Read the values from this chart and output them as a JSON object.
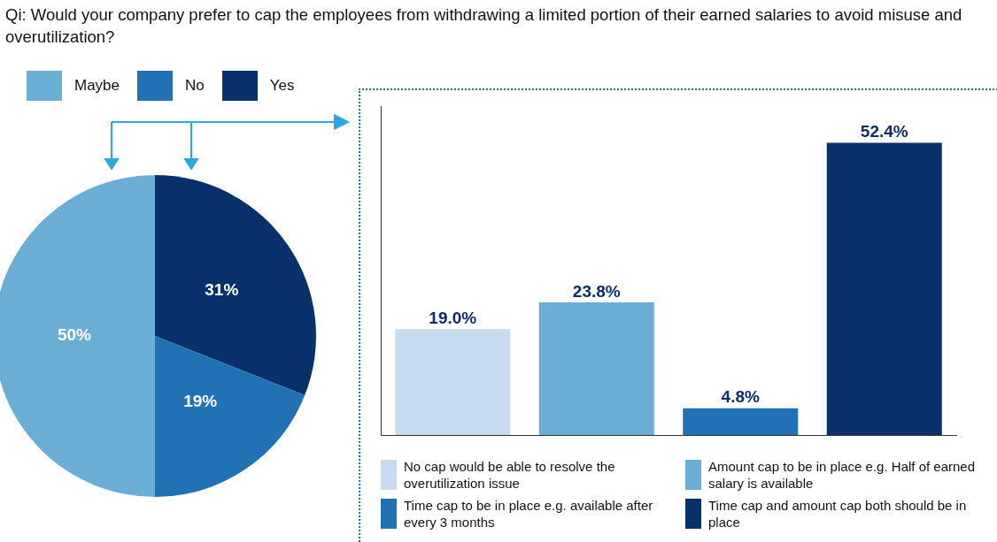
{
  "chart_data": [
    {
      "type": "pie",
      "title": "Qi: Would your company prefer to cap the employees from withdrawing a limited portion of their earned salaries to avoid misuse and overutilization?",
      "categories": [
        "Yes",
        "No",
        "Maybe"
      ],
      "values": [
        31,
        19,
        50
      ],
      "colors": [
        "#08306b",
        "#2171b5",
        "#6aaed6"
      ],
      "value_labels": [
        "31%",
        "19%",
        "50%"
      ],
      "legend": "top left"
    },
    {
      "type": "bar",
      "categories": [
        null,
        null,
        null,
        null
      ],
      "ylim": [
        0,
        59
      ],
      "stacked": true,
      "legend": "bottom",
      "series": [
        {
          "name": "No cap would be able to resolve the overutilization issue",
          "color": "#c6dbef",
          "values": [
            19.0,
            null,
            null,
            null
          ],
          "value_labels": [
            "19.0%",
            null,
            null,
            null
          ]
        },
        {
          "name": "Amount cap to be in place e.g. Half of earned salary is available",
          "color": "#6aaed6",
          "values": [
            null,
            23.8,
            null,
            null
          ],
          "value_labels": [
            null,
            "23.8%",
            null,
            null
          ]
        },
        {
          "name": "Time cap to be in place e.g. available after every 3 months",
          "color": "#2171b5",
          "values": [
            null,
            null,
            4.8,
            null
          ],
          "value_labels": [
            null,
            null,
            "4.8%",
            null
          ]
        },
        {
          "name": "Time cap and amount cap both should be in place",
          "color": "#08306b",
          "values": [
            null,
            null,
            null,
            52.4
          ],
          "value_labels": [
            null,
            null,
            null,
            "52.4%"
          ]
        }
      ]
    }
  ]
}
